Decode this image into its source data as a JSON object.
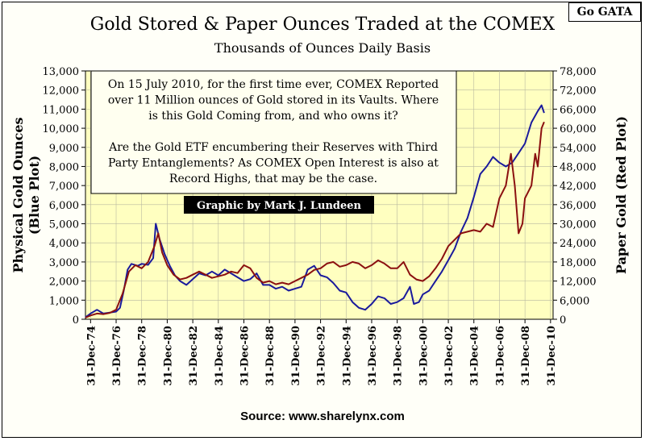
{
  "badge": "Go GATA",
  "chart_data": {
    "type": "line",
    "title": "Gold Stored & Paper Ounces Traded at the COMEX",
    "subtitle": "Thousands of Ounces Daily Basis",
    "ylabel_left": [
      "Physical Gold Ounces",
      "(Blue Plot)"
    ],
    "ylabel_right": "Paper Gold (Red Plot)",
    "ylim_left": [
      0,
      13000
    ],
    "ylim_right": [
      0,
      78000
    ],
    "yticks_left": [
      "0",
      "1,000",
      "2,000",
      "3,000",
      "4,000",
      "5,000",
      "6,000",
      "7,000",
      "8,000",
      "9,000",
      "10,000",
      "11,000",
      "12,000",
      "13,000"
    ],
    "yticks_right": [
      "0",
      "6,000",
      "12,000",
      "18,000",
      "24,000",
      "30,000",
      "36,000",
      "42,000",
      "48,000",
      "54,000",
      "60,000",
      "66,000",
      "72,000",
      "78,000"
    ],
    "xlim": [
      1974.6,
      2011.2
    ],
    "xticks": [
      "31-Dec-74",
      "31-Dec-76",
      "31-Dec-78",
      "31-Dec-80",
      "31-Dec-82",
      "31-Dec-84",
      "31-Dec-86",
      "31-Dec-88",
      "31-Dec-90",
      "31-Dec-92",
      "31-Dec-94",
      "31-Dec-96",
      "31-Dec-98",
      "31-Dec-00",
      "31-Dec-02",
      "31-Dec-04",
      "31-Dec-06",
      "31-Dec-08",
      "31-Dec-10"
    ],
    "annotation": [
      "On 15 July 2010, for the first time ever, COMEX Reported",
      "over 11 Million ounces of Gold stored in its Vaults.  Where",
      "is this Gold Coming from, and who owns it?",
      "",
      "Are the Gold ETF encumbering their Reserves with Third",
      "Party Entanglements?  As COMEX Open Interest is also at",
      "Record Highs, that may be the case."
    ],
    "credit": "Graphic by Mark J. Lundeen",
    "series": [
      {
        "name": "Blue Plot",
        "axis": "left",
        "color": "#1a1a9c",
        "points": [
          [
            1974.6,
            100
          ],
          [
            1975.0,
            300
          ],
          [
            1975.5,
            500
          ],
          [
            1976.0,
            300
          ],
          [
            1976.5,
            350
          ],
          [
            1977.0,
            400
          ],
          [
            1977.3,
            600
          ],
          [
            1977.6,
            1500
          ],
          [
            1977.9,
            2600
          ],
          [
            1978.2,
            2900
          ],
          [
            1978.7,
            2800
          ],
          [
            1979.0,
            2900
          ],
          [
            1979.5,
            2850
          ],
          [
            1979.9,
            3200
          ],
          [
            1980.1,
            5000
          ],
          [
            1980.4,
            4200
          ],
          [
            1980.8,
            3400
          ],
          [
            1981.2,
            2800
          ],
          [
            1981.6,
            2300
          ],
          [
            1982.0,
            2000
          ],
          [
            1982.5,
            1800
          ],
          [
            1983.0,
            2100
          ],
          [
            1983.5,
            2400
          ],
          [
            1984.0,
            2300
          ],
          [
            1984.5,
            2500
          ],
          [
            1985.0,
            2300
          ],
          [
            1985.5,
            2600
          ],
          [
            1986.0,
            2400
          ],
          [
            1986.5,
            2200
          ],
          [
            1987.0,
            2000
          ],
          [
            1987.5,
            2100
          ],
          [
            1988.0,
            2400
          ],
          [
            1988.5,
            1800
          ],
          [
            1989.0,
            1800
          ],
          [
            1989.5,
            1600
          ],
          [
            1990.0,
            1700
          ],
          [
            1990.5,
            1500
          ],
          [
            1991.0,
            1600
          ],
          [
            1991.5,
            1700
          ],
          [
            1992.0,
            2600
          ],
          [
            1992.5,
            2800
          ],
          [
            1993.0,
            2300
          ],
          [
            1993.5,
            2200
          ],
          [
            1994.0,
            1900
          ],
          [
            1994.5,
            1500
          ],
          [
            1995.0,
            1400
          ],
          [
            1995.5,
            900
          ],
          [
            1996.0,
            600
          ],
          [
            1996.5,
            500
          ],
          [
            1997.0,
            800
          ],
          [
            1997.5,
            1200
          ],
          [
            1998.0,
            1100
          ],
          [
            1998.5,
            800
          ],
          [
            1999.0,
            900
          ],
          [
            1999.5,
            1100
          ],
          [
            2000.0,
            1700
          ],
          [
            2000.3,
            800
          ],
          [
            2000.7,
            900
          ],
          [
            2001.0,
            1300
          ],
          [
            2001.5,
            1500
          ],
          [
            2002.0,
            2000
          ],
          [
            2002.5,
            2500
          ],
          [
            2003.0,
            3100
          ],
          [
            2003.5,
            3700
          ],
          [
            2004.0,
            4600
          ],
          [
            2004.5,
            5300
          ],
          [
            2005.0,
            6400
          ],
          [
            2005.5,
            7600
          ],
          [
            2006.0,
            8000
          ],
          [
            2006.5,
            8500
          ],
          [
            2007.0,
            8200
          ],
          [
            2007.5,
            8000
          ],
          [
            2008.0,
            8200
          ],
          [
            2008.5,
            8700
          ],
          [
            2009.0,
            9200
          ],
          [
            2009.5,
            10300
          ],
          [
            2010.0,
            10900
          ],
          [
            2010.3,
            11200
          ],
          [
            2010.5,
            10800
          ]
        ]
      },
      {
        "name": "Red Plot",
        "axis": "right",
        "color": "#8b1010",
        "points": [
          [
            1974.6,
            500
          ],
          [
            1975.0,
            1200
          ],
          [
            1975.5,
            1800
          ],
          [
            1976.0,
            1600
          ],
          [
            1976.5,
            2000
          ],
          [
            1977.0,
            3000
          ],
          [
            1977.5,
            8000
          ],
          [
            1978.0,
            15000
          ],
          [
            1978.5,
            17000
          ],
          [
            1979.0,
            16000
          ],
          [
            1979.5,
            18000
          ],
          [
            1980.0,
            23000
          ],
          [
            1980.3,
            27000
          ],
          [
            1980.6,
            21000
          ],
          [
            1981.0,
            17000
          ],
          [
            1981.5,
            14000
          ],
          [
            1982.0,
            12500
          ],
          [
            1982.5,
            13000
          ],
          [
            1983.0,
            14000
          ],
          [
            1983.5,
            15000
          ],
          [
            1984.0,
            14000
          ],
          [
            1984.5,
            13000
          ],
          [
            1985.0,
            13500
          ],
          [
            1985.5,
            14000
          ],
          [
            1986.0,
            15000
          ],
          [
            1986.5,
            14500
          ],
          [
            1987.0,
            17000
          ],
          [
            1987.5,
            16000
          ],
          [
            1988.0,
            13000
          ],
          [
            1988.5,
            11500
          ],
          [
            1989.0,
            12000
          ],
          [
            1989.5,
            11000
          ],
          [
            1990.0,
            11500
          ],
          [
            1990.5,
            11000
          ],
          [
            1991.0,
            12000
          ],
          [
            1991.5,
            13000
          ],
          [
            1992.0,
            14000
          ],
          [
            1992.5,
            15500
          ],
          [
            1993.0,
            16000
          ],
          [
            1993.5,
            17500
          ],
          [
            1994.0,
            18000
          ],
          [
            1994.5,
            16500
          ],
          [
            1995.0,
            17000
          ],
          [
            1995.5,
            18000
          ],
          [
            1996.0,
            17500
          ],
          [
            1996.5,
            16000
          ],
          [
            1997.0,
            17000
          ],
          [
            1997.5,
            18500
          ],
          [
            1998.0,
            17500
          ],
          [
            1998.5,
            16000
          ],
          [
            1999.0,
            16000
          ],
          [
            1999.5,
            18000
          ],
          [
            2000.0,
            14000
          ],
          [
            2000.5,
            12500
          ],
          [
            2001.0,
            12000
          ],
          [
            2001.5,
            13500
          ],
          [
            2002.0,
            16000
          ],
          [
            2002.5,
            19000
          ],
          [
            2003.0,
            23000
          ],
          [
            2003.5,
            25000
          ],
          [
            2004.0,
            27000
          ],
          [
            2004.5,
            27500
          ],
          [
            2005.0,
            28000
          ],
          [
            2005.5,
            27500
          ],
          [
            2006.0,
            30000
          ],
          [
            2006.5,
            29000
          ],
          [
            2007.0,
            38000
          ],
          [
            2007.5,
            42000
          ],
          [
            2007.9,
            52000
          ],
          [
            2008.2,
            42000
          ],
          [
            2008.5,
            27000
          ],
          [
            2008.8,
            30000
          ],
          [
            2009.0,
            38000
          ],
          [
            2009.5,
            42000
          ],
          [
            2009.8,
            52000
          ],
          [
            2010.0,
            48000
          ],
          [
            2010.3,
            60000
          ],
          [
            2010.5,
            62000
          ]
        ]
      }
    ],
    "source": "Source: www.sharelynx.com"
  }
}
